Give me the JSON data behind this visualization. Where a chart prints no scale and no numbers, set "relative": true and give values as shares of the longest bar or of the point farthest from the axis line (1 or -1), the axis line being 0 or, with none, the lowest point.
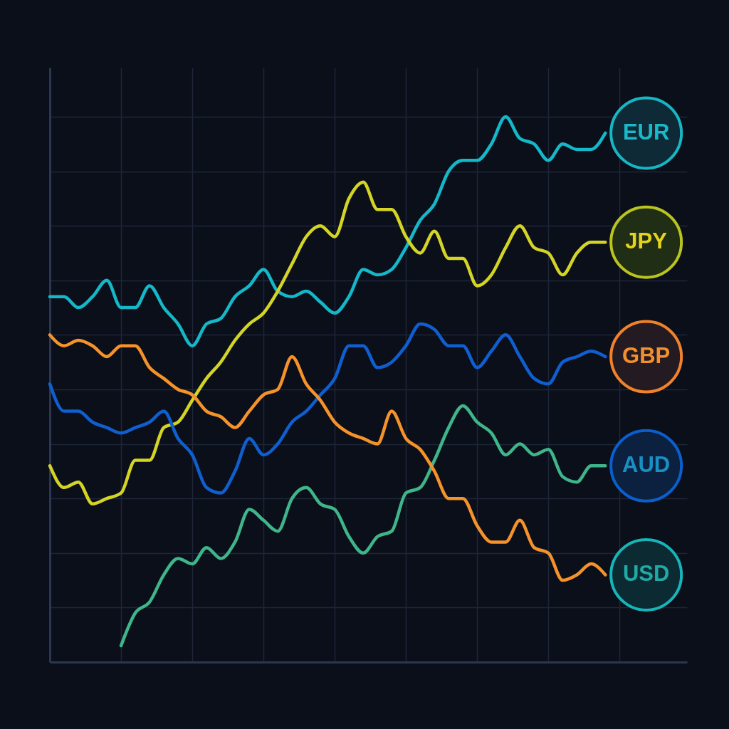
{
  "chart_data": {
    "type": "line",
    "relative": true,
    "grid": true,
    "legend": false,
    "marker": "none",
    "line_style": "solid",
    "categories": [
      null,
      null,
      null,
      null,
      null,
      null,
      null,
      null,
      null,
      null,
      null,
      null,
      null,
      null,
      null,
      null,
      null,
      null,
      null,
      null,
      null,
      null,
      null,
      null,
      null,
      null,
      null,
      null,
      null,
      null,
      null,
      null,
      null,
      null,
      null,
      null,
      null,
      null,
      null,
      null
    ],
    "series": [
      {
        "name": "EUR",
        "color": "#14b8c8",
        "values": [
          0.67,
          0.67,
          0.65,
          0.67,
          0.7,
          0.65,
          0.65,
          0.69,
          0.65,
          0.62,
          0.58,
          0.62,
          0.63,
          0.67,
          0.69,
          0.72,
          0.68,
          0.67,
          0.68,
          0.66,
          0.64,
          0.67,
          0.72,
          0.71,
          0.72,
          0.76,
          0.81,
          0.84,
          0.9,
          0.92,
          0.92,
          0.95,
          1.0,
          0.96,
          0.95,
          0.92,
          0.95,
          0.94,
          0.94,
          0.97
        ]
      },
      {
        "name": "JPY",
        "color": "#d4d425",
        "values": [
          0.36,
          0.32,
          0.33,
          0.29,
          0.3,
          0.31,
          0.37,
          0.37,
          0.43,
          0.44,
          0.48,
          0.52,
          0.55,
          0.59,
          0.62,
          0.64,
          0.68,
          0.73,
          0.78,
          0.8,
          0.78,
          0.85,
          0.88,
          0.83,
          0.83,
          0.78,
          0.75,
          0.79,
          0.74,
          0.74,
          0.69,
          0.71,
          0.76,
          0.8,
          0.76,
          0.75,
          0.71,
          0.75,
          0.77,
          0.77
        ]
      },
      {
        "name": "GBP",
        "color": "#0f5fd0",
        "values": [
          0.51,
          0.46,
          0.46,
          0.44,
          0.43,
          0.42,
          0.43,
          0.44,
          0.46,
          0.41,
          0.38,
          0.32,
          0.31,
          0.35,
          0.41,
          0.38,
          0.4,
          0.44,
          0.46,
          0.49,
          0.52,
          0.58,
          0.58,
          0.54,
          0.55,
          0.58,
          0.62,
          0.61,
          0.58,
          0.58,
          0.54,
          0.57,
          0.6,
          0.56,
          0.52,
          0.51,
          0.55,
          0.56,
          0.57,
          0.56
        ]
      },
      {
        "name": "AUD",
        "color": "#3fb58a",
        "values": [
          null,
          null,
          null,
          null,
          null,
          0.03,
          0.09,
          0.11,
          0.16,
          0.19,
          0.18,
          0.21,
          0.19,
          0.22,
          0.28,
          0.26,
          0.24,
          0.3,
          0.32,
          0.29,
          0.28,
          0.23,
          0.2,
          0.23,
          0.24,
          0.31,
          0.32,
          0.37,
          0.43,
          0.47,
          0.44,
          0.42,
          0.38,
          0.4,
          0.38,
          0.39,
          0.34,
          0.33,
          0.36,
          0.36
        ]
      },
      {
        "name": "USD",
        "color": "#f5922a",
        "values": [
          0.6,
          0.58,
          0.59,
          0.58,
          0.56,
          0.58,
          0.58,
          0.54,
          0.52,
          0.5,
          0.49,
          0.46,
          0.45,
          0.43,
          0.46,
          0.49,
          0.5,
          0.56,
          0.51,
          0.48,
          0.44,
          0.42,
          0.41,
          0.4,
          0.46,
          0.41,
          0.39,
          0.35,
          0.3,
          0.3,
          0.25,
          0.22,
          0.22,
          0.26,
          0.21,
          0.2,
          0.15,
          0.16,
          0.18,
          0.16
        ]
      }
    ]
  }
}
